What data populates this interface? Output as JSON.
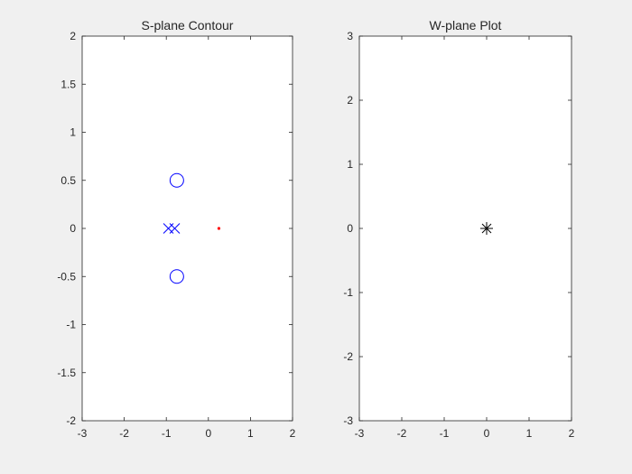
{
  "figure_background": "#f0f0f0",
  "chart_data": [
    {
      "id": "s-plane",
      "type": "scatter",
      "title": "S-plane Contour",
      "xlabel": "",
      "ylabel": "",
      "xlim": [
        -3,
        2
      ],
      "ylim": [
        -2,
        2
      ],
      "xticks": [
        "-3",
        "-2",
        "-1",
        "0",
        "1",
        "2"
      ],
      "yticks": [
        "-2",
        "-1.5",
        "-1",
        "-0.5",
        "0",
        "0.5",
        "1",
        "1.5",
        "2"
      ],
      "grid": false,
      "series": [
        {
          "marker": "circle",
          "color": "#0000ff",
          "points": [
            [
              -0.75,
              0.5
            ],
            [
              -0.75,
              -0.5
            ]
          ]
        },
        {
          "marker": "x",
          "color": "#0000ff",
          "points": [
            [
              -0.95,
              0
            ],
            [
              -0.8,
              0
            ]
          ]
        },
        {
          "marker": "dot",
          "color": "#ff0000",
          "points": [
            [
              0.25,
              0
            ]
          ]
        }
      ]
    },
    {
      "id": "w-plane",
      "type": "scatter",
      "title": "W-plane Plot",
      "xlabel": "",
      "ylabel": "",
      "xlim": [
        -3,
        2
      ],
      "ylim": [
        -3,
        3
      ],
      "xticks": [
        "-3",
        "-2",
        "-1",
        "0",
        "1",
        "2"
      ],
      "yticks": [
        "-3",
        "-2",
        "-1",
        "0",
        "1",
        "2",
        "3"
      ],
      "grid": false,
      "series": [
        {
          "marker": "asterisk",
          "color": "#000000",
          "points": [
            [
              0,
              0
            ]
          ]
        }
      ]
    }
  ]
}
